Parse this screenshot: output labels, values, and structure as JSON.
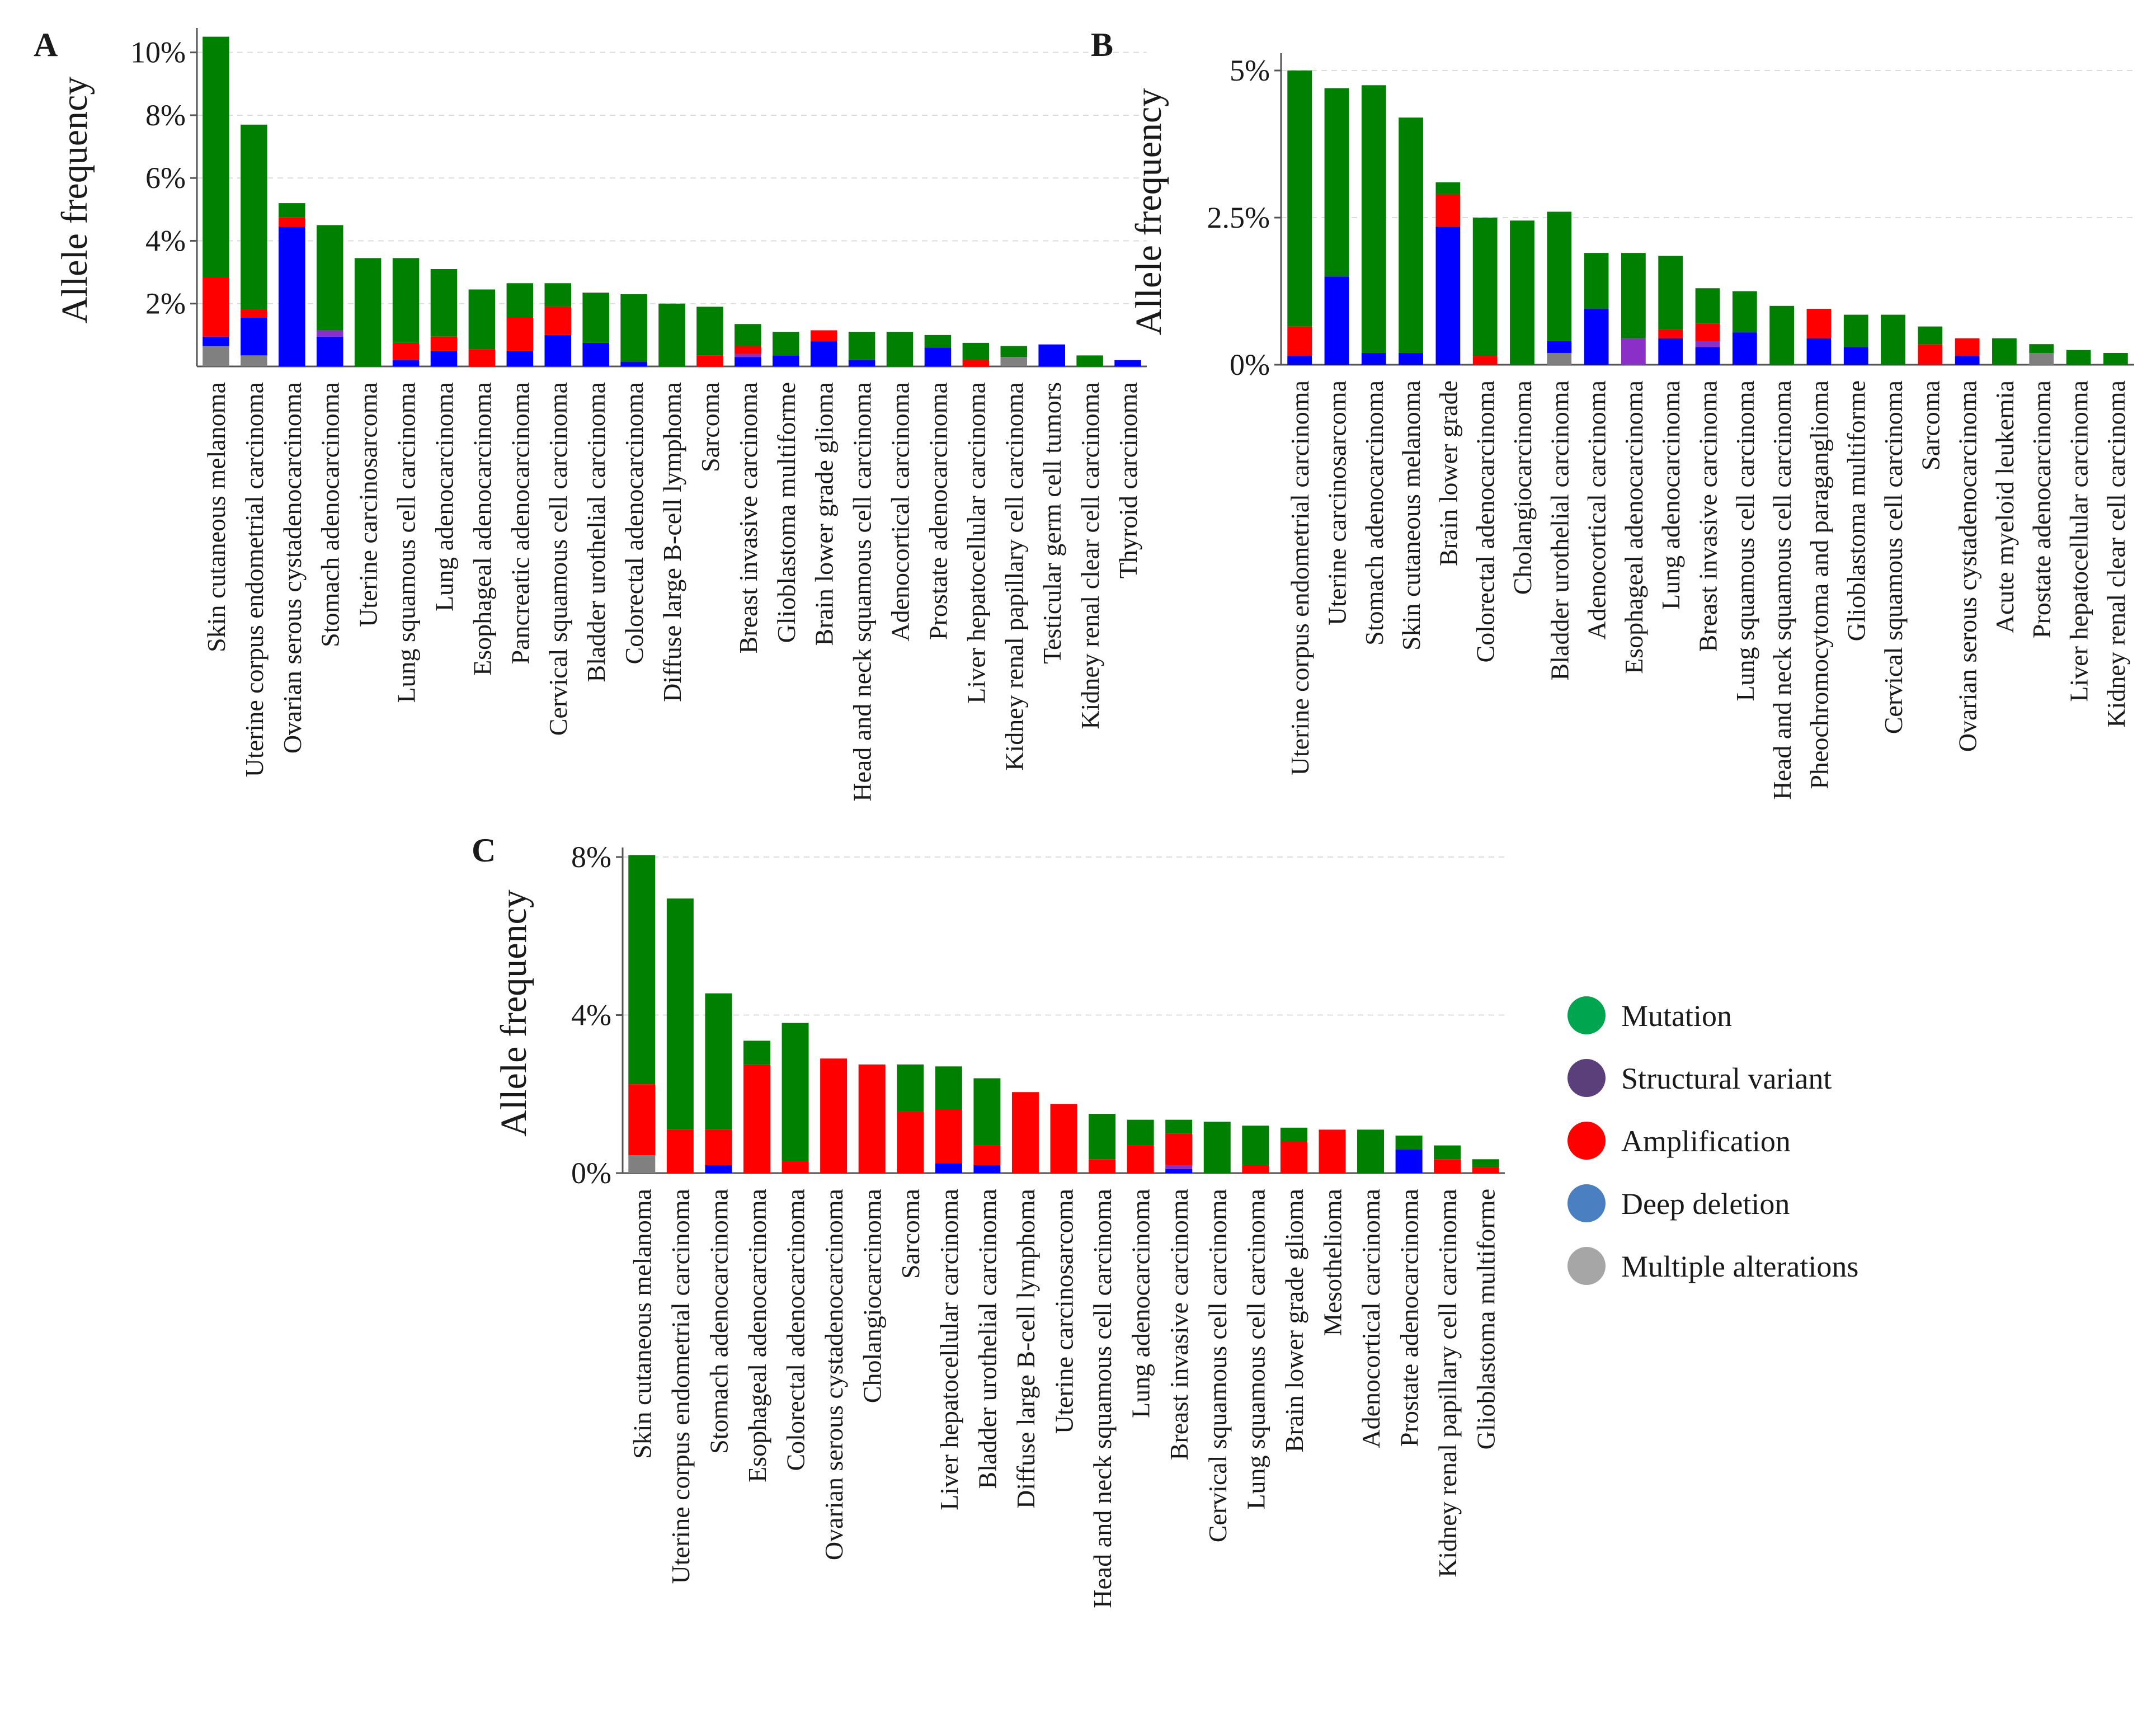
{
  "colors": {
    "mutation": "#008000",
    "structural_variant": "#8B2FC9",
    "amplification": "#FF0000",
    "deep_deletion": "#0000FF",
    "multiple_alterations": "#808080",
    "legend_mutation": "#00A550",
    "legend_structural_variant": "#5B3F7A",
    "legend_amplification": "#FF0000",
    "legend_deep_deletion": "#4A7FC1",
    "legend_multiple_alterations": "#A6A6A6"
  },
  "legend": [
    {
      "key": "mutation",
      "label": "Mutation"
    },
    {
      "key": "structural_variant",
      "label": "Structural  variant"
    },
    {
      "key": "amplification",
      "label": "Amplification"
    },
    {
      "key": "deep_deletion",
      "label": "Deep deletion"
    },
    {
      "key": "multiple_alterations",
      "label": "Multiple alterations"
    }
  ],
  "chart_data": [
    {
      "panel": "A",
      "type": "bar",
      "stacked": true,
      "ylabel": "Allele frequency",
      "ylim": [
        0,
        10.6
      ],
      "yticks": [
        2,
        4,
        6,
        8,
        10
      ],
      "ytick_labels": [
        "2%",
        "4%",
        "6%",
        "8%",
        "10%"
      ],
      "categories": [
        "Skin cutaneous melanoma",
        "Uterine corpus endometrial carcinoma",
        "Ovarian serous cystadenocarcinoma",
        "Stomach adenocarcinoma",
        "Uterine carcinosarcoma",
        "Lung squamous cell carcinoma",
        "Lung adenocarcinoma",
        "Esophageal adenocarcinoma",
        "Pancreatic adenocarcinoma",
        "Cervical squamous cell carcinoma",
        "Bladder urothelial carcinoma",
        "Colorectal adenocarcinoma",
        "Diffuse large B-cell lymphoma",
        "Sarcoma",
        "Breast invasive carcinoma",
        "Glioblastoma multiforme",
        "Brain lower grade glioma",
        "Head and neck squamous cell carcinoma",
        "Adenocortical carcinoma",
        "Prostate adenocarcinoma",
        "Liver hepatocellular carcinoma",
        "Kidney renal papillary cell carcinoma",
        "Testicular germ cell tumors",
        "Kidney renal clear cell carcinoma",
        "Thyroid carcinoma"
      ],
      "series": [
        {
          "name": "Multiple alterations",
          "key": "multiple_alterations",
          "values": [
            0.65,
            0.35,
            0,
            0,
            0,
            0,
            0,
            0,
            0,
            0,
            0,
            0,
            0,
            0,
            0,
            0,
            0,
            0,
            0,
            0,
            0,
            0.3,
            0,
            0,
            0
          ]
        },
        {
          "name": "Deep deletion",
          "key": "deep_deletion",
          "values": [
            0.3,
            1.2,
            4.45,
            0.95,
            0,
            0.2,
            0.5,
            0,
            0.5,
            1.0,
            0.75,
            0.15,
            0,
            0,
            0.3,
            0.35,
            0.8,
            0.2,
            0,
            0.6,
            0,
            0,
            0.7,
            0,
            0.2
          ]
        },
        {
          "name": "Structural variant",
          "key": "structural_variant",
          "values": [
            0,
            0,
            0,
            0.2,
            0,
            0,
            0,
            0,
            0,
            0,
            0,
            0,
            0,
            0,
            0.1,
            0,
            0,
            0,
            0,
            0,
            0,
            0,
            0,
            0,
            0
          ]
        },
        {
          "name": "Amplification",
          "key": "amplification",
          "values": [
            1.9,
            0.25,
            0.3,
            0,
            0,
            0.55,
            0.45,
            0.55,
            1.05,
            0.9,
            0,
            0,
            0,
            0.35,
            0.25,
            0,
            0.35,
            0,
            0,
            0,
            0.2,
            0,
            0,
            0,
            0
          ]
        },
        {
          "name": "Mutation",
          "key": "mutation",
          "values": [
            7.65,
            5.9,
            0.45,
            3.35,
            3.45,
            2.7,
            2.15,
            1.9,
            1.1,
            0.75,
            1.6,
            2.15,
            2.0,
            1.55,
            0.7,
            0.75,
            0,
            0.9,
            1.1,
            0.4,
            0.55,
            0.35,
            0,
            0.35,
            0
          ]
        }
      ]
    },
    {
      "panel": "B",
      "type": "bar",
      "stacked": true,
      "ylabel": "Allele frequency",
      "ylim": [
        0,
        5.2
      ],
      "yticks": [
        0,
        2.5,
        5
      ],
      "ytick_labels": [
        "0%",
        "2.5%",
        "5%"
      ],
      "categories": [
        "Uterine corpus endometrial carcinoma",
        "Uterine carcinosarcoma",
        "Stomach adenocarcinoma",
        "Skin cutaneous melanoma",
        "Brain lower grade",
        "Colorectal adenocarcinoma",
        "Cholangiocarcinoma",
        "Bladder urothelial carcinoma",
        "Adenocortical carcinoma",
        "Esophageal adenocarcinoma",
        "Lung adenocarcinoma",
        "Breast invasive carcinoma",
        "Lung squamous cell carcinoma",
        "Head and neck squamous cell carcinoma",
        "Pheochromocytoma and paraganglioma",
        "Glioblastoma multiforme",
        "Cervical squamous cell carcinoma",
        "Sarcoma",
        "Ovarian serous cystadenocarcinoma",
        "Acute myeloid leukemia",
        "Prostate adenocarcinoma",
        "Liver hepatocellular carcinoma",
        "Kidney renal clear cell carcinoma"
      ],
      "series": [
        {
          "name": "Multiple alterations",
          "key": "multiple_alterations",
          "values": [
            0,
            0,
            0,
            0,
            0,
            0,
            0,
            0.2,
            0,
            0,
            0,
            0,
            0,
            0,
            0,
            0,
            0,
            0,
            0,
            0,
            0.2,
            0,
            0
          ]
        },
        {
          "name": "Deep deletion",
          "key": "deep_deletion",
          "values": [
            0.15,
            1.5,
            0.2,
            0.2,
            2.35,
            0,
            0,
            0.2,
            0.95,
            0,
            0.45,
            0.3,
            0.55,
            0,
            0.45,
            0.3,
            0,
            0,
            0.15,
            0,
            0,
            0,
            0
          ]
        },
        {
          "name": "Structural variant",
          "key": "structural_variant",
          "values": [
            0,
            0,
            0,
            0,
            0,
            0,
            0,
            0,
            0,
            0.45,
            0,
            0.1,
            0,
            0,
            0,
            0,
            0,
            0,
            0,
            0,
            0,
            0,
            0
          ]
        },
        {
          "name": "Amplification",
          "key": "amplification",
          "values": [
            0.5,
            0,
            0,
            0,
            0.55,
            0.15,
            0,
            0,
            0,
            0,
            0.15,
            0.3,
            0,
            0,
            0.5,
            0,
            0,
            0.35,
            0.3,
            0,
            0,
            0,
            0
          ]
        },
        {
          "name": "Mutation",
          "key": "mutation",
          "values": [
            4.35,
            3.2,
            4.55,
            4.0,
            0.2,
            2.35,
            2.45,
            2.2,
            0.95,
            1.45,
            1.25,
            0.6,
            0.7,
            1.0,
            0,
            0.55,
            0.85,
            0.3,
            0,
            0.45,
            0.15,
            0.25,
            0.2
          ]
        }
      ]
    },
    {
      "panel": "C",
      "type": "bar",
      "stacked": true,
      "ylabel": "Allele frequency",
      "ylim": [
        0,
        8.1
      ],
      "yticks": [
        0,
        4,
        8
      ],
      "ytick_labels": [
        "0%",
        "4%",
        "8%"
      ],
      "categories": [
        "Skin cutaneous melanoma",
        "Uterine corpus endometrial carcinoma",
        "Stomach adenocarcinoma",
        "Esophageal adenocarcinoma",
        "Colorectal adenocarcinoma",
        "Ovarian serous cystadenocarcinoma",
        "Cholangiocarcinoma",
        "Sarcoma",
        "Liver hepatocellular carcinoma",
        "Bladder urothelial carcinoma",
        "Diffuse large B-cell lymphoma",
        "Uterine carcinosarcoma",
        "Head and neck squamous cell carcinoma",
        "Lung adenocarcinoma",
        "Breast invasive carcinoma",
        "Cervical squamous cell carcinoma",
        "Lung squamous cell carcinoma",
        "Brain lower grade glioma",
        "Mesothelioma",
        "Adenocortical carcinoma",
        "Prostate adenocarcinoma",
        "Kidney renal papillary cell carcinoma",
        "Glioblastoma multiforme"
      ],
      "series": [
        {
          "name": "Multiple alterations",
          "key": "multiple_alterations",
          "values": [
            0.45,
            0,
            0,
            0,
            0,
            0,
            0,
            0,
            0,
            0,
            0,
            0,
            0,
            0,
            0,
            0,
            0,
            0,
            0,
            0,
            0,
            0,
            0
          ]
        },
        {
          "name": "Deep deletion",
          "key": "deep_deletion",
          "values": [
            0,
            0,
            0.2,
            0,
            0,
            0,
            0,
            0,
            0.25,
            0.2,
            0,
            0,
            0,
            0,
            0.1,
            0,
            0,
            0,
            0,
            0,
            0.6,
            0,
            0
          ]
        },
        {
          "name": "Structural variant",
          "key": "structural_variant",
          "values": [
            0,
            0,
            0,
            0,
            0,
            0,
            0,
            0,
            0,
            0,
            0,
            0,
            0,
            0,
            0.1,
            0,
            0,
            0,
            0,
            0,
            0,
            0,
            0
          ]
        },
        {
          "name": "Amplification",
          "key": "amplification",
          "values": [
            1.8,
            1.1,
            0.9,
            2.75,
            0.3,
            2.9,
            2.75,
            1.55,
            1.35,
            0.5,
            2.05,
            1.75,
            0.35,
            0.7,
            0.8,
            0,
            0.2,
            0.8,
            1.1,
            0,
            0,
            0.35,
            0.15
          ]
        },
        {
          "name": "Mutation",
          "key": "mutation",
          "values": [
            5.8,
            5.85,
            3.45,
            0.6,
            3.5,
            0,
            0,
            1.2,
            1.1,
            1.7,
            0,
            0,
            1.15,
            0.65,
            0.35,
            1.3,
            1.0,
            0.35,
            0,
            1.1,
            0.35,
            0.35,
            0.2
          ]
        }
      ]
    }
  ]
}
